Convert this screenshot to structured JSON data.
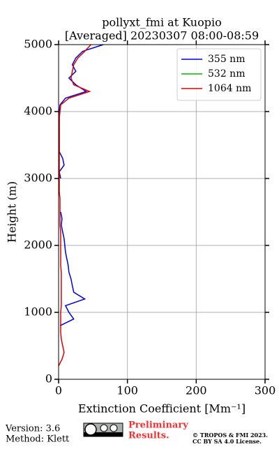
{
  "chart_data": {
    "type": "line",
    "title": [
      "pollyxt_fmi at Kuopio",
      "[Averaged] 20230307 08:00-08:59"
    ],
    "xlabel": "Extinction Coefficient [Mm⁻¹]",
    "ylabel": "Height (m)",
    "xlim": [
      0,
      300
    ],
    "xticks": [
      0,
      100,
      200,
      300
    ],
    "ylim": [
      0,
      5000
    ],
    "yticks": [
      0,
      1000,
      2000,
      3000,
      4000,
      5000
    ],
    "grid": true,
    "legend": "upper right",
    "y": [
      0,
      100,
      200,
      300,
      400,
      500,
      600,
      700,
      800,
      900,
      1000,
      1100,
      1200,
      1300,
      1400,
      1500,
      1600,
      1700,
      1800,
      1900,
      2000,
      2100,
      2200,
      2300,
      2400,
      2500,
      2600,
      2700,
      2800,
      2900,
      3000,
      3100,
      3200,
      3300,
      3400,
      3500,
      3600,
      3700,
      3800,
      3900,
      4000,
      4100,
      4200,
      4300,
      4400,
      4500,
      4600,
      4700,
      4800,
      4900,
      5000
    ],
    "series": [
      {
        "name": "355 nm",
        "color": "#0000dd",
        "values": [
          null,
          null,
          null,
          null,
          null,
          null,
          null,
          null,
          2,
          22,
          15,
          10,
          38,
          22,
          20,
          18,
          15,
          14,
          12,
          10,
          9,
          8,
          6,
          4,
          5,
          3,
          null,
          null,
          null,
          null,
          3,
          1,
          8,
          6,
          1,
          1,
          1,
          1,
          1,
          1,
          1,
          2,
          10,
          40,
          25,
          15,
          25,
          20,
          25,
          35,
          65
        ]
      },
      {
        "name": "532 nm",
        "color": "#00bb00",
        "values": [
          null,
          null,
          null,
          null,
          null,
          null,
          null,
          null,
          null,
          null,
          null,
          null,
          null,
          null,
          null,
          null,
          null,
          null,
          null,
          null,
          null,
          null,
          null,
          null,
          null,
          null,
          null,
          null,
          null,
          null,
          null,
          null,
          null,
          null,
          null,
          null,
          null,
          null,
          null,
          null,
          null,
          null,
          null,
          null,
          null,
          null,
          null,
          null,
          null,
          null,
          null
        ]
      },
      {
        "name": "1064 nm",
        "color": "#dd0000",
        "values": [
          null,
          null,
          0,
          5,
          8,
          6,
          4,
          3,
          3,
          3,
          3,
          4,
          4,
          4,
          4,
          4,
          4,
          3,
          3,
          3,
          3,
          3,
          3,
          2,
          2,
          2,
          2,
          2,
          1,
          1,
          1,
          1,
          1,
          1,
          1,
          1,
          1,
          1,
          1,
          1,
          2,
          3,
          15,
          45,
          22,
          18,
          20,
          22,
          28,
          38,
          47
        ]
      }
    ]
  },
  "footer": {
    "version": "Version: 3.6",
    "method": "Method: Klett",
    "notice": [
      "Preliminary",
      "Results."
    ],
    "copyright": [
      "© TROPOS & FMI 2023.",
      "CC BY SA 4.0 License."
    ]
  }
}
